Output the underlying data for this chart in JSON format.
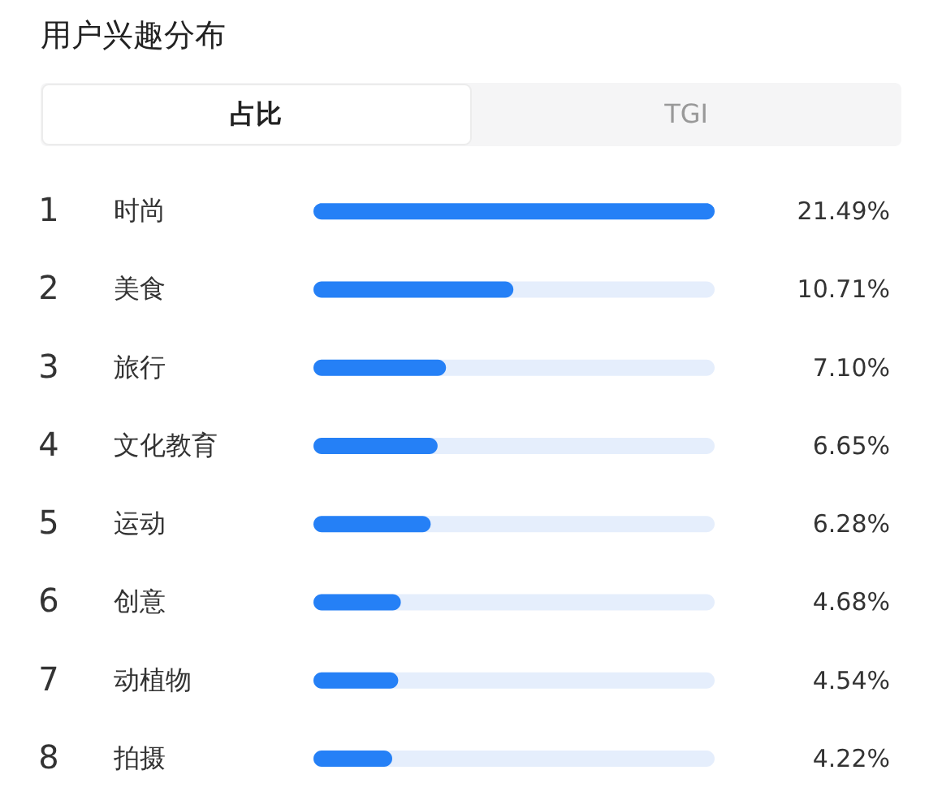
{
  "chart_data": {
    "type": "bar",
    "orientation": "horizontal",
    "title": "用户兴趣分布",
    "categories": [
      "时尚",
      "美食",
      "旅行",
      "文化教育",
      "运动",
      "创意",
      "动植物",
      "拍摄"
    ],
    "values": [
      21.49,
      10.71,
      7.1,
      6.65,
      6.28,
      4.68,
      4.54,
      4.22
    ],
    "value_labels": [
      "21.49%",
      "10.71%",
      "7.10%",
      "6.65%",
      "6.28%",
      "4.68%",
      "4.54%",
      "4.22%"
    ],
    "color": "#2580f6",
    "xlim": [
      0,
      21.49
    ],
    "tick_labels": "y",
    "annotations": [
      "占比",
      "TGI",
      "1",
      "2",
      "3",
      "4",
      "5",
      "6",
      "7",
      "8"
    ]
  }
}
